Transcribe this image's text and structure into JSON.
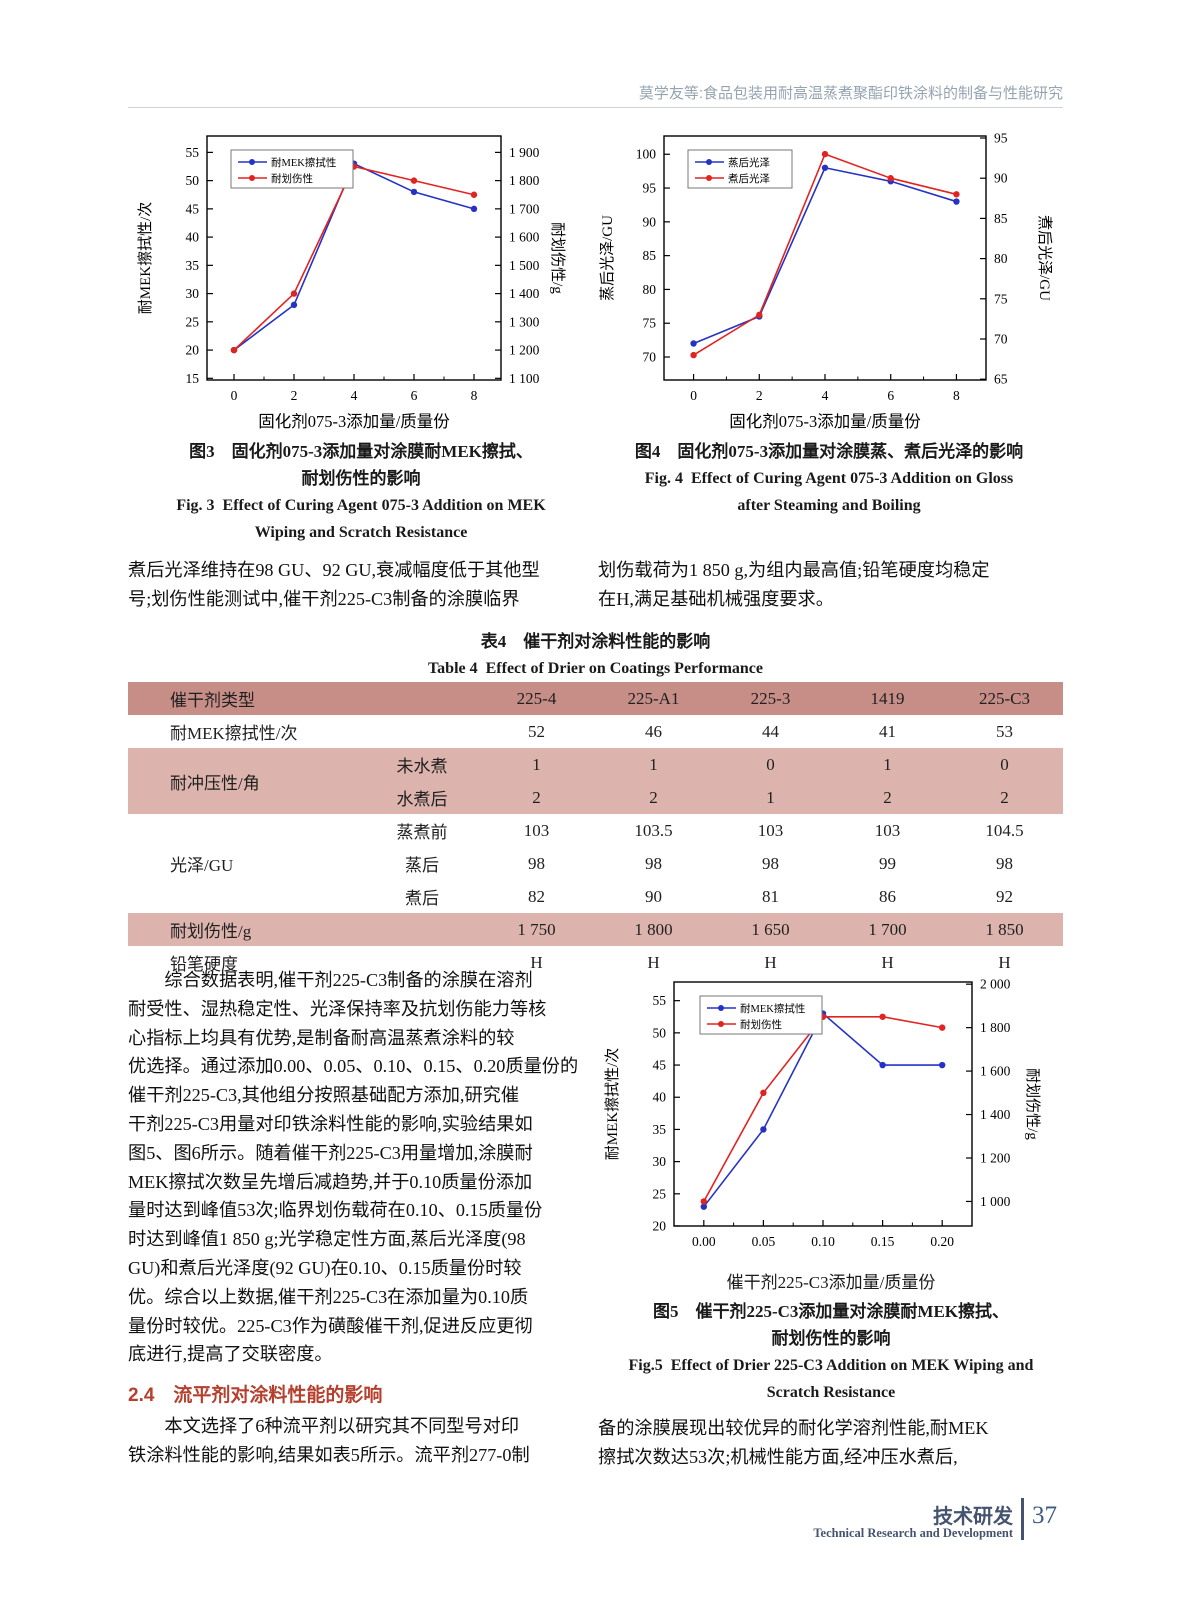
{
  "header": {
    "running_title": "莫学友等:食品包装用耐高温蒸煮聚酯印铁涂料的制备与性能研究"
  },
  "figures": {
    "fig3": {
      "caption_zh_1": "图3　固化剂075-3添加量对涂膜耐MEK擦拭、",
      "caption_zh_2": "耐划伤性的影响",
      "caption_en_1": "Fig. 3  Effect of Curing Agent 075-3 Addition on MEK",
      "caption_en_2": "Wiping and Scratch Resistance"
    },
    "fig4": {
      "caption_zh_1": "图4　固化剂075-3添加量对涂膜蒸、煮后光泽的影响",
      "caption_en_1": "Fig. 4  Effect of Curing Agent 075-3 Addition on Gloss",
      "caption_en_2": "after Steaming and Boiling"
    },
    "fig5": {
      "caption_zh_1": "图5　催干剂225-C3添加量对涂膜耐MEK擦拭、",
      "caption_zh_2": "耐划伤性的影响",
      "caption_en_1": "Fig.5  Effect of Drier 225-C3 Addition on MEK Wiping and",
      "caption_en_2": "Scratch Resistance"
    }
  },
  "paragraphs": {
    "col_left_top": [
      "煮后光泽维持在98 GU、92 GU,衰减幅度低于其他型",
      "号;划伤性能测试中,催干剂225-C3制备的涂膜临界"
    ],
    "col_right_top": [
      "划伤载荷为1 850 g,为组内最高值;铅笔硬度均稳定",
      "在H,满足基础机械强度要求。"
    ],
    "mid_left": [
      "　　综合数据表明,催干剂225-C3制备的涂膜在溶剂",
      "耐受性、湿热稳定性、光泽保持率及抗划伤能力等核",
      "心指标上均具有优势,是制备耐高温蒸煮涂料的较",
      "优选择。通过添加0.00、0.05、0.10、0.15、0.20质量份的",
      "催干剂225-C3,其他组分按照基础配方添加,研究催",
      "干剂225-C3用量对印铁涂料性能的影响,实验结果如",
      "图5、图6所示。随着催干剂225-C3用量增加,涂膜耐",
      "MEK擦拭次数呈先增后减趋势,并于0.10质量份添加",
      "量时达到峰值53次;临界划伤载荷在0.10、0.15质量份",
      "时达到峰值1 850 g;光学稳定性方面,蒸后光泽度(98",
      "GU)和煮后光泽度(92 GU)在0.10、0.15质量份时较",
      "优。综合以上数据,催干剂225-C3在添加量为0.10质",
      "量份时较优。225-C3作为磺酸催干剂,促进反应更彻",
      "底进行,提高了交联密度。"
    ],
    "section_heading": "2.4　流平剂对涂料性能的影响",
    "after_heading": [
      "　　本文选择了6种流平剂以研究其不同型号对印",
      "铁涂料性能的影响,结果如表5所示。流平剂277-0制"
    ],
    "col_right_bottom": [
      "备的涂膜展现出较优异的耐化学溶剂性能,耐MEK",
      "擦拭次数达53次;机械性能方面,经冲压水煮后,"
    ]
  },
  "table4": {
    "title_zh": "表4　催干剂对涂料性能的影响",
    "title_en": "Table 4  Effect of Drier on Coatings Performance",
    "rows": [
      {
        "label": "催干剂类型",
        "sub": null,
        "values": [
          "225-4",
          "225-A1",
          "225-3",
          "1419",
          "225-C3"
        ],
        "bg": "header"
      },
      {
        "label": "耐MEK擦拭性/次",
        "sub": null,
        "values": [
          "52",
          "46",
          "44",
          "41",
          "53"
        ],
        "bg": "white"
      },
      {
        "label": "耐冲压性/角",
        "rowspan": 2,
        "sub": "未水煮",
        "values": [
          "1",
          "1",
          "0",
          "1",
          "0"
        ],
        "bg": "pink"
      },
      {
        "sub": "水煮后",
        "values": [
          "2",
          "2",
          "1",
          "2",
          "2"
        ],
        "bg": "pink"
      },
      {
        "label": "光泽/GU",
        "rowspan": 3,
        "sub": "蒸煮前",
        "values": [
          "103",
          "103.5",
          "103",
          "103",
          "104.5"
        ],
        "bg": "white"
      },
      {
        "sub": "蒸后",
        "values": [
          "98",
          "98",
          "98",
          "99",
          "98"
        ],
        "bg": "white"
      },
      {
        "sub": "煮后",
        "values": [
          "82",
          "90",
          "81",
          "86",
          "92"
        ],
        "bg": "white"
      },
      {
        "label": "耐划伤性/g",
        "sub": null,
        "values": [
          "1 750",
          "1 800",
          "1 650",
          "1 700",
          "1 850"
        ],
        "bg": "pink"
      },
      {
        "label": "铅笔硬度",
        "sub": null,
        "values": [
          "H",
          "H",
          "H",
          "H",
          "H"
        ],
        "bg": "white"
      }
    ]
  },
  "chart_data": [
    {
      "id": "fig3",
      "type": "line",
      "title": "图3 固化剂075-3添加量对涂膜耐MEK擦拭、耐划伤性的影响",
      "xlabel": "固化剂075-3添加量/质量份",
      "x": [
        0,
        2,
        4,
        6,
        8
      ],
      "x_tick_labels": [
        "0",
        "2",
        "4",
        "6",
        "8"
      ],
      "x_minor": [
        1,
        3,
        5,
        7
      ],
      "xlim": [
        -0.9,
        8.9
      ],
      "left_axis": {
        "label": "耐MEK擦拭性/次",
        "ticks": [
          15,
          20,
          25,
          30,
          35,
          40,
          45,
          50,
          55
        ],
        "tick_labels": [
          "15",
          "20",
          "25",
          "30",
          "35",
          "40",
          "45",
          "50",
          "55"
        ],
        "lim": [
          14.7,
          57.9
        ]
      },
      "right_axis": {
        "label": "耐划伤性/g",
        "ticks": [
          1100,
          1200,
          1300,
          1400,
          1500,
          1600,
          1700,
          1800,
          1900
        ],
        "tick_labels": [
          "1 100",
          "1 200",
          "1 300",
          "1 400",
          "1 500",
          "1 600",
          "1 700",
          "1 800",
          "1 900"
        ],
        "lim": [
          1094,
          1958
        ]
      },
      "series": [
        {
          "name": "耐MEK擦拭性",
          "axis": "left",
          "color": "#2433c4",
          "values": [
            20,
            28,
            53,
            48,
            45
          ]
        },
        {
          "name": "耐划伤性",
          "axis": "right",
          "color": "#e02422",
          "values": [
            1200,
            1400,
            1850,
            1800,
            1750
          ]
        }
      ],
      "legend_position": "top-left",
      "grid": false
    },
    {
      "id": "fig4",
      "type": "line",
      "title": "图4 固化剂075-3添加量对涂膜蒸、煮后光泽的影响",
      "xlabel": "固化剂075-3添加量/质量份",
      "x": [
        0,
        2,
        4,
        6,
        8
      ],
      "x_tick_labels": [
        "0",
        "2",
        "4",
        "6",
        "8"
      ],
      "x_minor": [
        1,
        3,
        5,
        7
      ],
      "xlim": [
        -0.9,
        8.9
      ],
      "left_axis": {
        "label": "蒸后光泽/GU",
        "ticks": [
          70,
          75,
          80,
          85,
          90,
          95,
          100
        ],
        "tick_labels": [
          "70",
          "75",
          "80",
          "85",
          "90",
          "95",
          "100"
        ],
        "lim": [
          66.6,
          102.7
        ]
      },
      "right_axis": {
        "label": "煮后光泽/GU",
        "ticks": [
          65,
          70,
          75,
          80,
          85,
          90,
          95
        ],
        "tick_labels": [
          "65",
          "70",
          "75",
          "80",
          "85",
          "90",
          "95"
        ],
        "lim": [
          64.9,
          95.25
        ]
      },
      "series": [
        {
          "name": "蒸后光泽",
          "axis": "left",
          "color": "#2433c4",
          "values": [
            72,
            76,
            98,
            96,
            93
          ]
        },
        {
          "name": "煮后光泽",
          "axis": "right",
          "color": "#e02422",
          "values": [
            68,
            73,
            93,
            90,
            88
          ]
        }
      ],
      "legend_position": "top-left",
      "grid": false
    },
    {
      "id": "fig5",
      "type": "line",
      "title": "图5 催干剂225-C3添加量对涂膜耐MEK擦拭、耐划伤性的影响",
      "xlabel": "催干剂225-C3添加量/质量份",
      "x": [
        0,
        0.05,
        0.1,
        0.15,
        0.2
      ],
      "x_tick_labels": [
        "0.00",
        "0.05",
        "0.10",
        "0.15",
        "0.20"
      ],
      "x_minor": [
        0.025,
        0.075,
        0.125,
        0.175
      ],
      "xlim": [
        -0.025,
        0.225
      ],
      "left_axis": {
        "label": "耐MEK擦拭性/次",
        "ticks": [
          20,
          25,
          30,
          35,
          40,
          45,
          50,
          55
        ],
        "tick_labels": [
          "20",
          "25",
          "30",
          "35",
          "40",
          "45",
          "50",
          "55"
        ],
        "lim": [
          20,
          57.9
        ]
      },
      "right_axis": {
        "label": "耐划伤性/g",
        "ticks": [
          1000,
          1200,
          1400,
          1600,
          1800,
          2000
        ],
        "tick_labels": [
          "1 000",
          "1 200",
          "1 400",
          "1 600",
          "1 800",
          "2 000"
        ],
        "lim": [
          887,
          2010
        ]
      },
      "series": [
        {
          "name": "耐MEK擦拭性",
          "axis": "left",
          "color": "#2433c4",
          "values": [
            23,
            35,
            53,
            45,
            45
          ]
        },
        {
          "name": "耐划伤性",
          "axis": "right",
          "color": "#e02422",
          "values": [
            1000,
            1500,
            1850,
            1850,
            1800
          ]
        }
      ],
      "legend_position": "top-left",
      "grid": false
    }
  ],
  "footer": {
    "section_zh": "技术研发",
    "section_en": "Technical Research and Development",
    "page_number": "37"
  }
}
